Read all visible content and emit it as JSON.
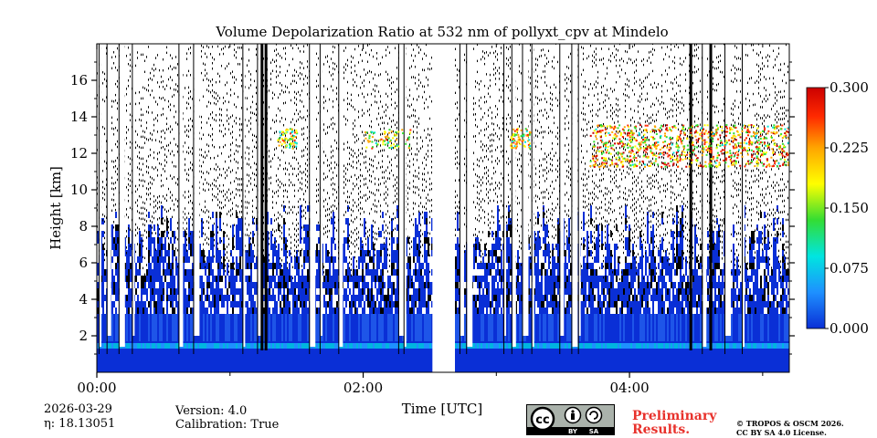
{
  "chart_data": {
    "type": "heatmap",
    "title": "Volume Depolarization Ratio at 532 nm of pollyxt_cpv at Mindelo",
    "xlabel": "Time [UTC]",
    "ylabel": "Height [km]",
    "x_range_hours": [
      0,
      5.2
    ],
    "y_range_km": [
      0,
      18
    ],
    "x_ticks": [
      {
        "value": 0,
        "label": "00:00"
      },
      {
        "value": 2,
        "label": "02:00"
      },
      {
        "value": 4,
        "label": "04:00"
      }
    ],
    "x_minor_ticks": [
      1,
      3,
      5
    ],
    "y_ticks": [
      {
        "value": 2,
        "label": "2"
      },
      {
        "value": 4,
        "label": "4"
      },
      {
        "value": 6,
        "label": "6"
      },
      {
        "value": 8,
        "label": "8"
      },
      {
        "value": 10,
        "label": "10"
      },
      {
        "value": 12,
        "label": "12"
      },
      {
        "value": 14,
        "label": "14"
      },
      {
        "value": 16,
        "label": "16"
      }
    ],
    "colorbar": {
      "range": [
        0.0,
        0.3
      ],
      "ticks": [
        "0.000",
        "0.075",
        "0.150",
        "0.225",
        "0.300"
      ],
      "colors": [
        "#0a2fd6",
        "#1e90ff",
        "#00e5e0",
        "#33dd33",
        "#ffff00",
        "#ffa500",
        "#ff2a00",
        "#cc0000"
      ]
    },
    "data_gaps_hours": [
      [
        2.52,
        2.68
      ]
    ],
    "features": [
      {
        "name": "aerosol boundary layer",
        "height_km": [
          0.8,
          1.7
        ],
        "depolarization": 0.05
      },
      {
        "name": "cirrus layer",
        "height_km": [
          11.3,
          13.6
        ],
        "time_hours": [
          3.7,
          5.2
        ],
        "depolarization": 0.22
      }
    ]
  },
  "meta": {
    "date": "2026-03-29",
    "eta": "η: 18.13051",
    "version": "Version: 4.0",
    "calibration": "Calibration: True"
  },
  "license": {
    "cc_label": "cc",
    "by_label": "BY",
    "sa_label": "SA",
    "preliminary": "Preliminary",
    "results": "Results.",
    "copyright": "© TROPOS & OSCM 2026.",
    "license_text": "CC BY SA 4.0 License."
  }
}
